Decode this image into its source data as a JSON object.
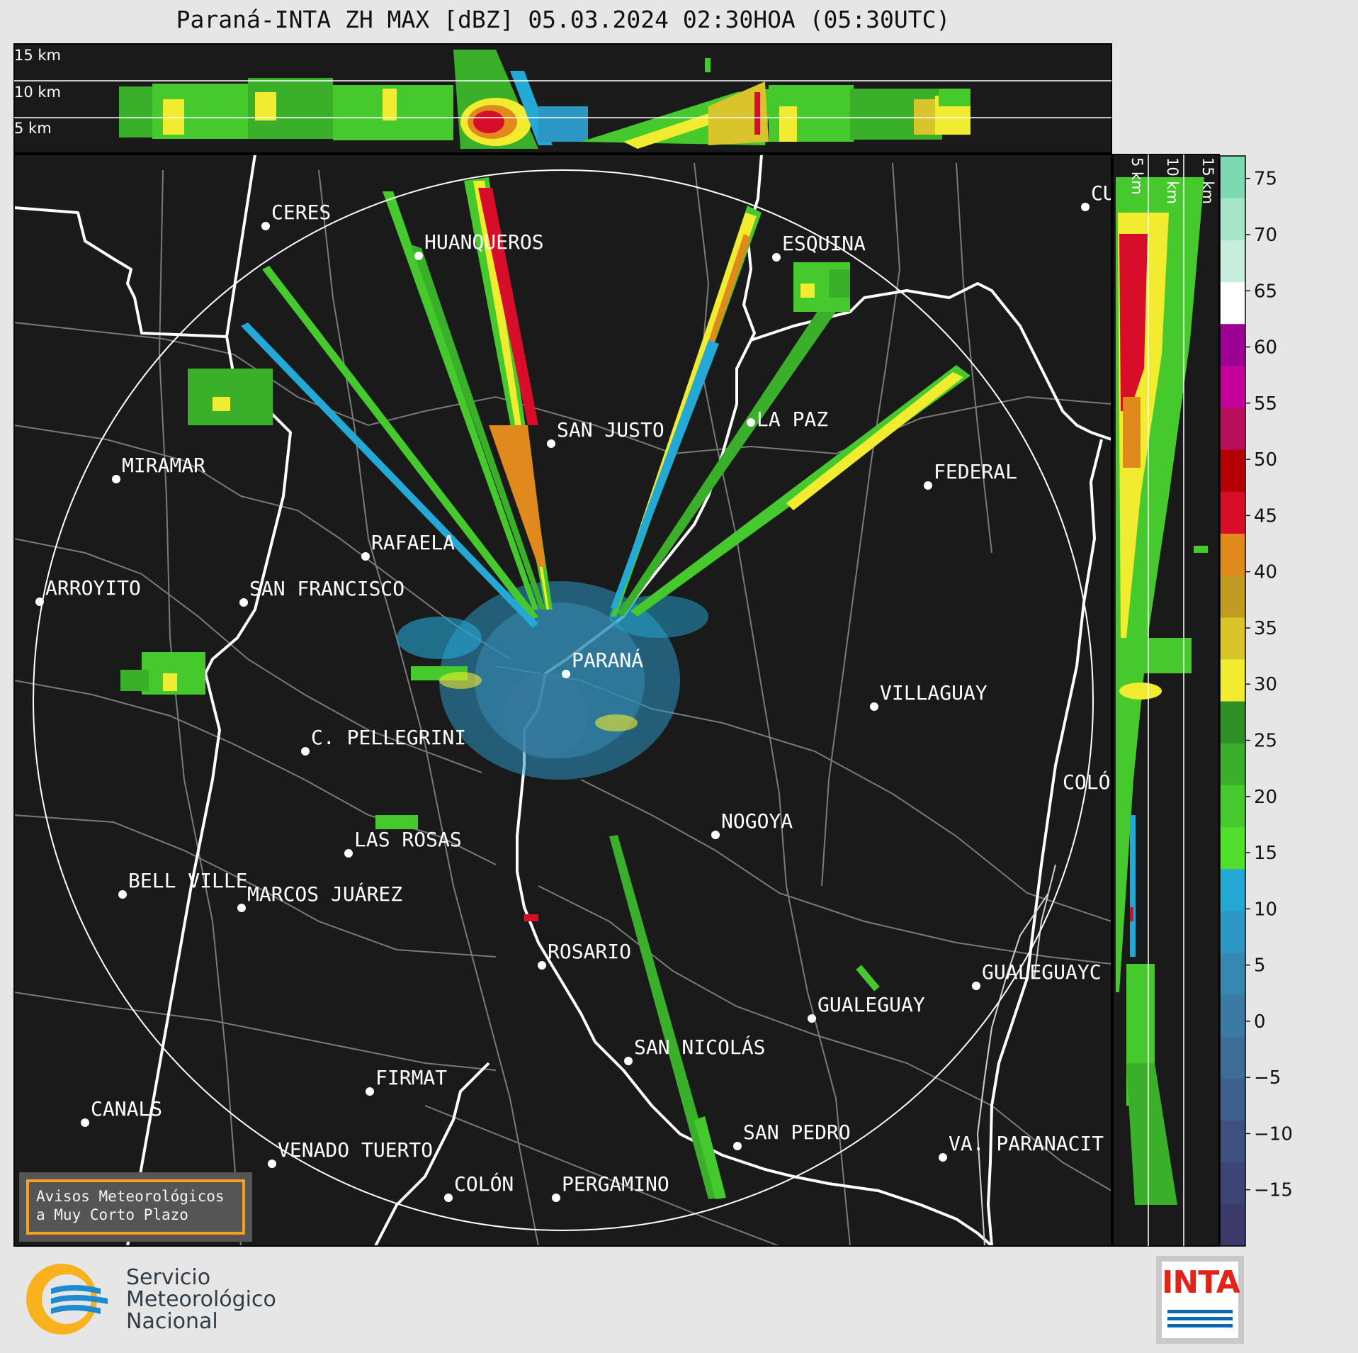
{
  "title": "Paraná-INTA ZH MAX [dBZ] 05.03.2024 02:30HOA (05:30UTC)",
  "height_labels": [
    "15 km",
    "10 km",
    "5 km"
  ],
  "vertical_height_labels": [
    "5 km",
    "10 km",
    "15 km"
  ],
  "cities": [
    {
      "name": "CERES"
    },
    {
      "name": "HUANQUEROS"
    },
    {
      "name": "ESQUINA"
    },
    {
      "name": "CU"
    },
    {
      "name": "SAN JUSTO"
    },
    {
      "name": "LA PAZ"
    },
    {
      "name": "MIRAMAR"
    },
    {
      "name": "FEDERAL"
    },
    {
      "name": "RAFAELA"
    },
    {
      "name": "ARROYITO"
    },
    {
      "name": "SAN FRANCISCO"
    },
    {
      "name": "PARANÁ"
    },
    {
      "name": "VILLAGUAY"
    },
    {
      "name": "C. PELLEGRINI"
    },
    {
      "name": "COLÓ"
    },
    {
      "name": "NOGOYA"
    },
    {
      "name": "LAS ROSAS"
    },
    {
      "name": "BELL VILLE"
    },
    {
      "name": "MARCOS JUÁREZ"
    },
    {
      "name": "ROSARIO"
    },
    {
      "name": "GUALEGUAYC"
    },
    {
      "name": "GUALEGUAY"
    },
    {
      "name": "SAN NICOLÁS"
    },
    {
      "name": "FIRMAT"
    },
    {
      "name": "CANALS"
    },
    {
      "name": "SAN PEDRO"
    },
    {
      "name": "VENADO TUERTO"
    },
    {
      "name": "VA. PARANACIT"
    },
    {
      "name": "COLÓN"
    },
    {
      "name": "PERGAMINO"
    }
  ],
  "colorbar": {
    "ticks": [
      "75",
      "70",
      "65",
      "60",
      "55",
      "50",
      "45",
      "40",
      "35",
      "30",
      "25",
      "20",
      "15",
      "10",
      "5",
      "0",
      "−5",
      "−10",
      "−15"
    ],
    "colors": [
      "#3b3a6b",
      "#3d4577",
      "#3e5282",
      "#3f5f8c",
      "#3d6c97",
      "#3b7aa2",
      "#3688b0",
      "#2c97c2",
      "#24a9d6",
      "#50e02c",
      "#45c92c",
      "#3ab02a",
      "#2e8f24",
      "#f1ec2f",
      "#d9c42c",
      "#c39b22",
      "#e08a1d",
      "#d70d2a",
      "#b40000",
      "#b90e5a",
      "#c4009d",
      "#9d0094",
      "#ffffff",
      "#c7eedc",
      "#a7e5c8",
      "#7ed9b0"
    ]
  },
  "notice": {
    "line1": "Avisos Meteorológicos",
    "line2": "a Muy Corto Plazo"
  },
  "smn": {
    "line1": "Servicio",
    "line2": "Meteorológico",
    "line3": "Nacional"
  },
  "inta": {
    "word": "INTA"
  }
}
